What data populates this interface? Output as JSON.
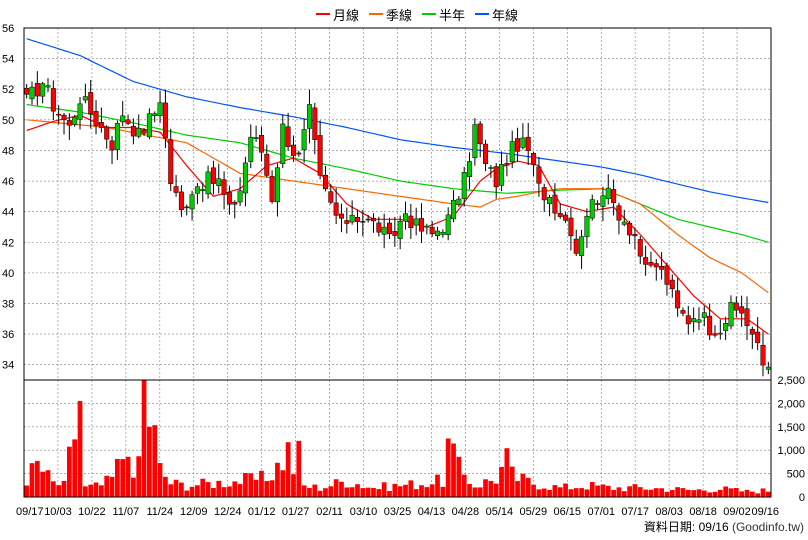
{
  "legend": {
    "items": [
      {
        "label": "月線",
        "color": "#ff0000"
      },
      {
        "label": "季線",
        "color": "#ff6600"
      },
      {
        "label": "半年",
        "color": "#00cc00"
      },
      {
        "label": "年線",
        "color": "#0055ff"
      }
    ]
  },
  "footer": {
    "date_label": "資料日期: 09/16",
    "source": "(Goodinfo.tw)"
  },
  "colors": {
    "up": "#00cc00",
    "down": "#ff0000",
    "volume": "#ff0000",
    "grid": "#808080"
  },
  "chart_data": {
    "type": "candlestick_with_volume",
    "x_tick_labels": [
      "09/17",
      "10/03",
      "10/22",
      "11/07",
      "11/24",
      "12/09",
      "12/24",
      "01/12",
      "01/27",
      "02/11",
      "03/10",
      "03/25",
      "04/13",
      "04/28",
      "05/14",
      "05/29",
      "06/15",
      "07/01",
      "07/17",
      "08/03",
      "08/18",
      "09/02",
      "09/16"
    ],
    "price_axis": {
      "ticks": [
        34,
        36,
        38,
        40,
        42,
        44,
        46,
        48,
        50,
        52,
        54,
        56
      ],
      "ylim": [
        33,
        56
      ]
    },
    "volume_axis": {
      "ticks": [
        0,
        500,
        1000,
        1500,
        2000,
        2500
      ],
      "tick_labels": [
        "0",
        "500",
        "1,000",
        "1,500",
        "2,000",
        "2,500"
      ],
      "ylim": [
        0,
        2500
      ]
    },
    "price_anchors": [
      [
        0,
        51.2
      ],
      [
        3,
        52.5
      ],
      [
        5,
        51
      ],
      [
        8,
        49.5
      ],
      [
        10,
        51.5
      ],
      [
        13,
        50
      ],
      [
        16,
        48.5
      ],
      [
        18,
        50.5
      ],
      [
        21,
        49
      ],
      [
        24,
        50.5
      ],
      [
        25,
        51.5
      ],
      [
        27,
        46
      ],
      [
        29,
        44
      ],
      [
        31,
        45.5
      ],
      [
        33,
        46
      ],
      [
        36,
        46
      ],
      [
        38,
        44
      ],
      [
        40,
        45.5
      ],
      [
        42,
        49
      ],
      [
        44,
        48
      ],
      [
        46,
        45
      ],
      [
        48,
        49.5
      ],
      [
        50,
        48
      ],
      [
        51,
        47.5
      ],
      [
        53,
        50.5
      ],
      [
        55,
        46
      ],
      [
        57,
        44.5
      ],
      [
        59,
        43
      ],
      [
        61,
        44
      ],
      [
        63,
        43.5
      ],
      [
        66,
        43
      ],
      [
        68,
        42
      ],
      [
        71,
        44
      ],
      [
        73,
        43
      ],
      [
        76,
        42.5
      ],
      [
        79,
        43.5
      ],
      [
        82,
        46
      ],
      [
        84,
        49.5
      ],
      [
        86,
        47
      ],
      [
        88,
        46
      ],
      [
        90,
        47.5
      ],
      [
        92,
        48.5
      ],
      [
        94,
        48
      ],
      [
        96,
        45.5
      ],
      [
        98,
        45
      ],
      [
        100,
        44
      ],
      [
        102,
        43
      ],
      [
        103,
        41.5
      ],
      [
        105,
        44
      ],
      [
        108,
        45.5
      ],
      [
        110,
        44.5
      ],
      [
        112,
        43.5
      ],
      [
        114,
        42.5
      ],
      [
        116,
        40
      ],
      [
        118,
        40.5
      ],
      [
        120,
        39.5
      ],
      [
        122,
        37.5
      ],
      [
        124,
        37
      ],
      [
        126,
        37.5
      ],
      [
        128,
        36.5
      ],
      [
        130,
        36.5
      ],
      [
        132,
        37.5
      ],
      [
        134,
        37.5
      ],
      [
        136,
        36
      ],
      [
        138,
        34
      ]
    ],
    "volume_anchors": [
      [
        0,
        400
      ],
      [
        2,
        700
      ],
      [
        5,
        300
      ],
      [
        7,
        250
      ],
      [
        9,
        1400
      ],
      [
        11,
        200
      ],
      [
        14,
        250
      ],
      [
        16,
        400
      ],
      [
        18,
        900
      ],
      [
        19,
        1500
      ],
      [
        20,
        300
      ],
      [
        23,
        2000
      ],
      [
        25,
        600
      ],
      [
        27,
        300
      ],
      [
        30,
        250
      ],
      [
        35,
        300
      ],
      [
        40,
        350
      ],
      [
        45,
        400
      ],
      [
        48,
        800
      ],
      [
        49,
        1000
      ],
      [
        51,
        250
      ],
      [
        55,
        200
      ],
      [
        60,
        350
      ],
      [
        65,
        200
      ],
      [
        70,
        250
      ],
      [
        75,
        300
      ],
      [
        78,
        350
      ],
      [
        80,
        900
      ],
      [
        81,
        600
      ],
      [
        84,
        250
      ],
      [
        88,
        400
      ],
      [
        90,
        800
      ],
      [
        92,
        400
      ],
      [
        95,
        300
      ],
      [
        100,
        200
      ],
      [
        105,
        250
      ],
      [
        110,
        200
      ],
      [
        115,
        200
      ],
      [
        120,
        180
      ],
      [
        125,
        150
      ],
      [
        130,
        180
      ],
      [
        135,
        120
      ],
      [
        138,
        140
      ]
    ],
    "volume_spikes": [
      [
        10,
        2050
      ],
      [
        22,
        2500
      ],
      [
        23,
        1500
      ],
      [
        51,
        1200
      ],
      [
        79,
        1250
      ],
      [
        91,
        650
      ]
    ],
    "ma_month": [
      [
        0,
        49.3
      ],
      [
        5,
        49.9
      ],
      [
        10,
        50.3
      ],
      [
        15,
        49.5
      ],
      [
        20,
        49.5
      ],
      [
        25,
        49.2
      ],
      [
        30,
        47
      ],
      [
        35,
        45
      ],
      [
        40,
        45.5
      ],
      [
        45,
        47
      ],
      [
        50,
        47.5
      ],
      [
        55,
        46.5
      ],
      [
        60,
        44.5
      ],
      [
        65,
        43.5
      ],
      [
        70,
        43.5
      ],
      [
        75,
        43
      ],
      [
        80,
        43.7
      ],
      [
        85,
        46
      ],
      [
        88,
        46.8
      ],
      [
        92,
        47.3
      ],
      [
        96,
        47
      ],
      [
        100,
        44.5
      ],
      [
        105,
        44
      ],
      [
        110,
        44.3
      ],
      [
        115,
        42.5
      ],
      [
        120,
        40.5
      ],
      [
        125,
        38.5
      ],
      [
        130,
        37
      ],
      [
        135,
        37
      ],
      [
        139,
        36
      ]
    ],
    "ma_quarter": [
      [
        0,
        50
      ],
      [
        15,
        49.5
      ],
      [
        30,
        48.5
      ],
      [
        40,
        46.5
      ],
      [
        50,
        46
      ],
      [
        60,
        45.5
      ],
      [
        70,
        45
      ],
      [
        80,
        44.5
      ],
      [
        85,
        44.3
      ],
      [
        88,
        44.8
      ],
      [
        92,
        45
      ],
      [
        96,
        45.3
      ],
      [
        100,
        45.5
      ],
      [
        108,
        45.5
      ],
      [
        115,
        44.5
      ],
      [
        122,
        42.5
      ],
      [
        128,
        41
      ],
      [
        134,
        40
      ],
      [
        139,
        38.7
      ]
    ],
    "ma_half": [
      [
        0,
        51
      ],
      [
        10,
        50.5
      ],
      [
        20,
        49.8
      ],
      [
        30,
        49
      ],
      [
        40,
        48.5
      ],
      [
        50,
        47.5
      ],
      [
        60,
        46.8
      ],
      [
        70,
        46
      ],
      [
        80,
        45.5
      ],
      [
        90,
        45.2
      ],
      [
        100,
        45.4
      ],
      [
        108,
        45.5
      ],
      [
        115,
        44.5
      ],
      [
        122,
        43.5
      ],
      [
        128,
        43
      ],
      [
        134,
        42.5
      ],
      [
        139,
        42
      ]
    ],
    "ma_year": [
      [
        0,
        55.3
      ],
      [
        10,
        54.2
      ],
      [
        20,
        52.5
      ],
      [
        30,
        51.5
      ],
      [
        40,
        50.8
      ],
      [
        50,
        50.2
      ],
      [
        60,
        49.5
      ],
      [
        70,
        48.7
      ],
      [
        80,
        48.2
      ],
      [
        90,
        47.8
      ],
      [
        100,
        47.3
      ],
      [
        108,
        46.9
      ],
      [
        115,
        46.4
      ],
      [
        122,
        45.8
      ],
      [
        128,
        45.3
      ],
      [
        134,
        44.9
      ],
      [
        139,
        44.6
      ]
    ]
  }
}
